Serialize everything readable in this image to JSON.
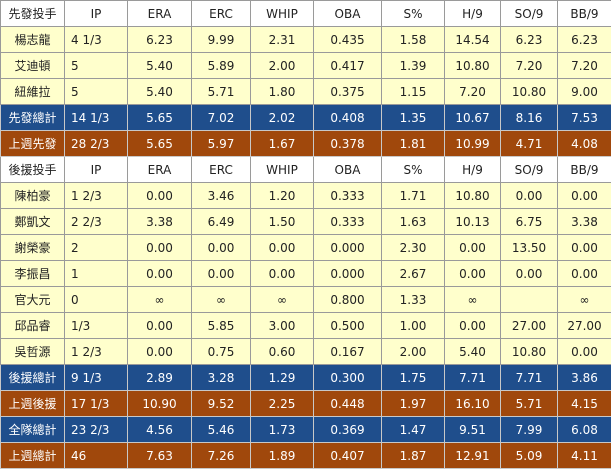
{
  "colors": {
    "player_bg": "#ffffcc",
    "total_blue": "#1f4e8c",
    "total_orange": "#a0480c",
    "header_bg": "#ffffff"
  },
  "columns": [
    "IP",
    "ERA",
    "ERC",
    "WHIP",
    "OBA",
    "S%",
    "H/9",
    "SO/9",
    "BB/9"
  ],
  "starters": {
    "header": "先發投手",
    "rows": [
      {
        "name": "楊志龍",
        "v": [
          "4 1/3",
          "6.23",
          "9.99",
          "2.31",
          "0.435",
          "1.58",
          "14.54",
          "6.23",
          "6.23"
        ]
      },
      {
        "name": "艾迪頓",
        "v": [
          "5",
          "5.40",
          "5.89",
          "2.00",
          "0.417",
          "1.39",
          "10.80",
          "7.20",
          "7.20"
        ]
      },
      {
        "name": "紐維拉",
        "v": [
          "5",
          "5.40",
          "5.71",
          "1.80",
          "0.375",
          "1.15",
          "7.20",
          "10.80",
          "9.00"
        ]
      }
    ],
    "totals": [
      {
        "name": "先發總計",
        "style": "blue",
        "v": [
          "14 1/3",
          "5.65",
          "7.02",
          "2.02",
          "0.408",
          "1.35",
          "10.67",
          "8.16",
          "7.53"
        ]
      },
      {
        "name": "上週先發",
        "style": "orange",
        "v": [
          "28 2/3",
          "5.65",
          "5.97",
          "1.67",
          "0.378",
          "1.81",
          "10.99",
          "4.71",
          "4.08"
        ]
      }
    ]
  },
  "relievers": {
    "header": "後援投手",
    "rows": [
      {
        "name": "陳柏豪",
        "v": [
          "1 2/3",
          "0.00",
          "3.46",
          "1.20",
          "0.333",
          "1.71",
          "10.80",
          "0.00",
          "0.00"
        ]
      },
      {
        "name": "鄭凱文",
        "v": [
          "2 2/3",
          "3.38",
          "6.49",
          "1.50",
          "0.333",
          "1.63",
          "10.13",
          "6.75",
          "3.38"
        ]
      },
      {
        "name": "謝榮豪",
        "v": [
          "2",
          "0.00",
          "0.00",
          "0.00",
          "0.000",
          "2.30",
          "0.00",
          "13.50",
          "0.00"
        ]
      },
      {
        "name": "李振昌",
        "v": [
          "1",
          "0.00",
          "0.00",
          "0.00",
          "0.000",
          "2.67",
          "0.00",
          "0.00",
          "0.00"
        ]
      },
      {
        "name": "官大元",
        "v": [
          "0",
          "∞",
          "∞",
          "∞",
          "0.800",
          "1.33",
          "∞",
          "",
          "∞"
        ]
      },
      {
        "name": "邱品睿",
        "v": [
          "1/3",
          "0.00",
          "5.85",
          "3.00",
          "0.500",
          "1.00",
          "0.00",
          "27.00",
          "27.00"
        ]
      },
      {
        "name": "吳哲源",
        "v": [
          "1 2/3",
          "0.00",
          "0.75",
          "0.60",
          "0.167",
          "2.00",
          "5.40",
          "10.80",
          "0.00"
        ]
      }
    ],
    "totals": [
      {
        "name": "後援總計",
        "style": "blue",
        "v": [
          "9 1/3",
          "2.89",
          "3.28",
          "1.29",
          "0.300",
          "1.75",
          "7.71",
          "7.71",
          "3.86"
        ]
      },
      {
        "name": "上週後援",
        "style": "orange",
        "v": [
          "17 1/3",
          "10.90",
          "9.52",
          "2.25",
          "0.448",
          "1.97",
          "16.10",
          "5.71",
          "4.15"
        ]
      },
      {
        "name": "全隊總計",
        "style": "blue",
        "v": [
          "23 2/3",
          "4.56",
          "5.46",
          "1.73",
          "0.369",
          "1.47",
          "9.51",
          "7.99",
          "6.08"
        ]
      },
      {
        "name": "上週總計",
        "style": "orange",
        "v": [
          "46",
          "7.63",
          "7.26",
          "1.89",
          "0.407",
          "1.87",
          "12.91",
          "5.09",
          "4.11"
        ]
      }
    ]
  }
}
